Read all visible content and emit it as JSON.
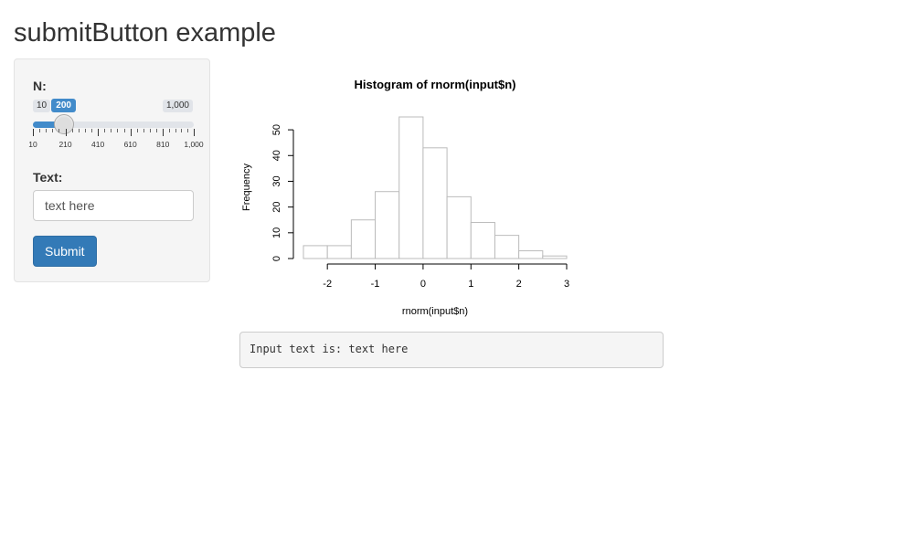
{
  "title": "submitButton example",
  "sidebar": {
    "slider": {
      "label": "N:",
      "min_label": "10",
      "max_label": "1,000",
      "value_label": "200",
      "min": 10,
      "max": 1000,
      "value": 200,
      "major_ticks": [
        10,
        210,
        410,
        610,
        810,
        1000
      ],
      "tick_labels": [
        "10",
        "210",
        "410",
        "610",
        "810",
        "1,000"
      ],
      "accent_color": "#428bca"
    },
    "text_field": {
      "label": "Text:",
      "value": "text here"
    },
    "submit_label": "Submit",
    "submit_color": "#337ab7"
  },
  "output": {
    "text": "Input text is: text here"
  },
  "chart_data": {
    "type": "bar",
    "title": "Histogram of rnorm(input$n)",
    "xlabel": "rnorm(input$n)",
    "ylabel": "Frequency",
    "bin_edges": [
      -2.5,
      -2,
      -1.5,
      -1,
      -0.5,
      0,
      0.5,
      1,
      1.5,
      2,
      2.5,
      3
    ],
    "values": [
      5,
      5,
      15,
      26,
      55,
      43,
      24,
      14,
      9,
      3,
      1
    ],
    "xlim": [
      -2.5,
      3
    ],
    "ylim": [
      0,
      55
    ],
    "x_ticks": [
      -2,
      -1,
      0,
      1,
      2,
      3
    ],
    "x_tick_labels": [
      "-2",
      "-1",
      "0",
      "1",
      "2",
      "3"
    ],
    "y_ticks": [
      0,
      10,
      20,
      30,
      40,
      50
    ],
    "y_tick_labels": [
      "0",
      "10",
      "20",
      "30",
      "40",
      "50"
    ],
    "grid": false
  }
}
